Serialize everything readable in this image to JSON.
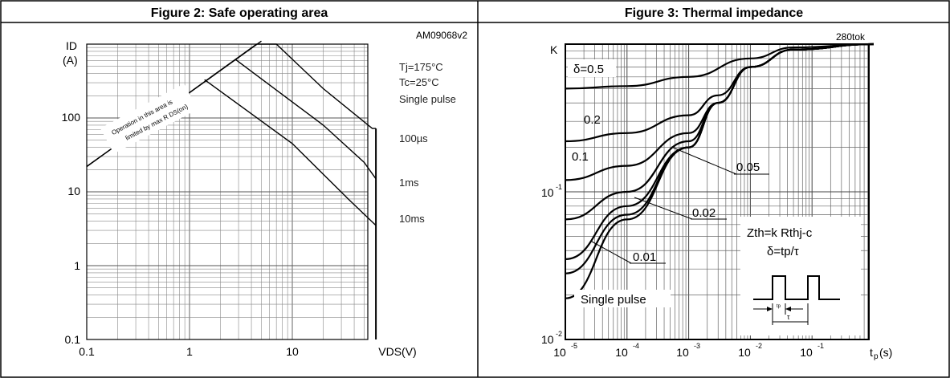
{
  "chart_data": [
    {
      "type": "line",
      "title": "Figure 2: Safe operating area",
      "code": "AM09068v2",
      "xaxis": {
        "label": "VDS(V)",
        "scale": "log",
        "range": [
          0.1,
          75
        ],
        "ticks": [
          0.1,
          1,
          10
        ],
        "tick_labels": [
          "0.1",
          "1",
          "10"
        ]
      },
      "yaxis": {
        "label": "ID",
        "unit": "(A)",
        "scale": "log",
        "range": [
          0.1,
          1500
        ],
        "ticks": [
          0.1,
          1,
          10,
          100
        ],
        "tick_labels": [
          "0.1",
          "1",
          "10",
          "100"
        ]
      },
      "conditions": [
        "Tj=175°C",
        "Tc=25°C",
        "Single pulse"
      ],
      "region_note": [
        "Operation in this area is",
        "limited by max R DS(on)"
      ],
      "grid": true,
      "series": [
        {
          "name": "Rds(on) limit",
          "x": [
            0.1,
            5
          ],
          "y": [
            22,
            1100
          ]
        },
        {
          "name": "100µs",
          "x": [
            0.1,
            4.5,
            7,
            20,
            60,
            65
          ],
          "y": [
            22,
            1000,
            1000,
            250,
            72,
            72
          ]
        },
        {
          "name": "1ms",
          "x": [
            2.8,
            20,
            50,
            65
          ],
          "y": [
            620,
            80,
            25,
            15
          ]
        },
        {
          "name": "10ms",
          "x": [
            1.4,
            10,
            35,
            65
          ],
          "y": [
            330,
            45,
            8,
            3.5
          ]
        },
        {
          "name": "VDS max",
          "x": [
            65,
            65
          ],
          "y": [
            72,
            0.1
          ]
        }
      ],
      "curve_labels": [
        "100µs",
        "1ms",
        "10ms"
      ]
    },
    {
      "type": "line",
      "title": "Figure 3: Thermal impedance",
      "code": "280tok",
      "xaxis": {
        "label": "tp(s)",
        "scale": "log",
        "range": [
          1e-05,
          1
        ],
        "ticks": [
          1e-05,
          0.0001,
          0.001,
          0.01,
          0.1
        ],
        "tick_labels": [
          "10-5",
          "10-4",
          "10-3",
          "10-2",
          "10-1"
        ]
      },
      "yaxis": {
        "label": "K",
        "scale": "log",
        "range": [
          0.01,
          1
        ],
        "ticks": [
          0.01,
          0.1,
          1
        ],
        "tick_labels": [
          "10-2",
          "10-1",
          "K"
        ]
      },
      "grid": true,
      "formula": [
        "Zth=k Rthj-c",
        "δ=tp/τ"
      ],
      "inset_labels": {
        "tp": "tp",
        "tau": "τ"
      },
      "series": [
        {
          "name": "δ=0.5",
          "x": [
            1e-05,
            0.0001,
            0.001,
            0.01,
            0.05,
            1
          ],
          "y": [
            0.5,
            0.52,
            0.6,
            0.8,
            0.95,
            1
          ]
        },
        {
          "name": "0.2",
          "x": [
            1e-05,
            0.0001,
            0.001,
            0.003,
            0.01,
            0.05,
            1
          ],
          "y": [
            0.22,
            0.25,
            0.33,
            0.45,
            0.7,
            0.92,
            1
          ]
        },
        {
          "name": "0.1",
          "x": [
            1e-05,
            0.0001,
            0.001,
            0.003,
            0.01,
            0.05,
            1
          ],
          "y": [
            0.12,
            0.15,
            0.25,
            0.4,
            0.7,
            0.92,
            1
          ]
        },
        {
          "name": "0.05",
          "x": [
            1e-05,
            0.0001,
            0.001,
            0.003,
            0.01,
            0.05,
            1
          ],
          "y": [
            0.065,
            0.1,
            0.22,
            0.4,
            0.7,
            0.92,
            1
          ]
        },
        {
          "name": "0.02",
          "x": [
            1e-05,
            0.0001,
            0.001,
            0.003,
            0.01,
            0.05,
            1
          ],
          "y": [
            0.035,
            0.08,
            0.2,
            0.4,
            0.7,
            0.92,
            1
          ]
        },
        {
          "name": "0.01",
          "x": [
            1e-05,
            0.0001,
            0.001,
            0.003,
            0.01,
            0.05,
            1
          ],
          "y": [
            0.028,
            0.07,
            0.2,
            0.4,
            0.7,
            0.92,
            1
          ]
        },
        {
          "name": "Single pulse",
          "x": [
            1e-05,
            0.0001,
            0.001,
            0.003,
            0.01,
            0.05,
            1
          ],
          "y": [
            0.019,
            0.065,
            0.2,
            0.4,
            0.7,
            0.92,
            1
          ]
        }
      ],
      "curve_labels": [
        "δ=0.5",
        "0.2",
        "0.1",
        "0.05",
        "0.02",
        "0.01",
        "Single pulse"
      ]
    }
  ]
}
